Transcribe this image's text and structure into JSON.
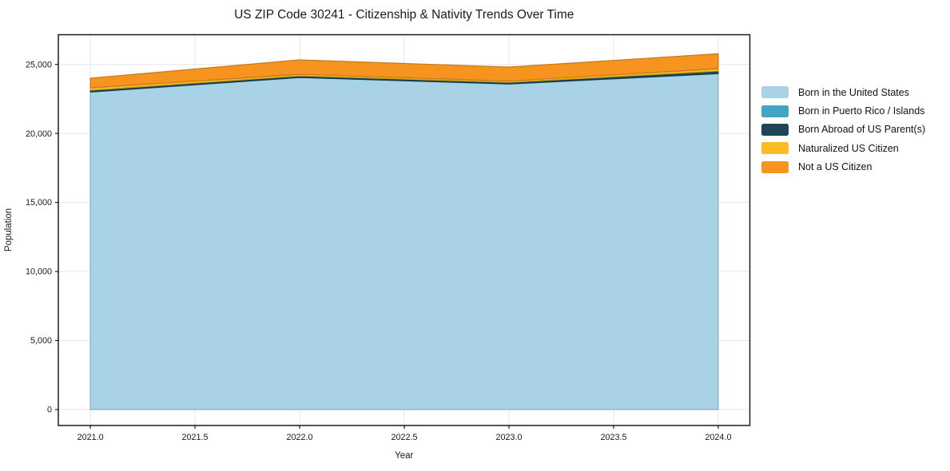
{
  "title": "US ZIP Code 30241 - Citizenship & Nativity Trends Over Time",
  "chart_data": {
    "type": "area",
    "stacked": true,
    "title": "US ZIP Code 30241 - Citizenship & Nativity Trends Over Time",
    "xlabel": "Year",
    "ylabel": "Population",
    "x": [
      2021,
      2022,
      2023,
      2024
    ],
    "series": [
      {
        "name": "Born in the United States",
        "color": "#a8d3e6",
        "values": [
          23000,
          24050,
          23580,
          24330
        ]
      },
      {
        "name": "Born in Puerto Rico / Islands",
        "color": "#41a6c6",
        "values": [
          10,
          10,
          10,
          15
        ]
      },
      {
        "name": "Born Abroad of US Parent(s)",
        "color": "#1e4456",
        "values": [
          120,
          115,
          115,
          175
        ]
      },
      {
        "name": "Naturalized US Citizen",
        "color": "#fbbc22",
        "values": [
          175,
          115,
          90,
          175
        ]
      },
      {
        "name": "Not a US Citizen",
        "color": "#f5941f",
        "values": [
          700,
          1040,
          1015,
          1080
        ]
      }
    ],
    "totals": [
      24005,
      25330,
      24810,
      25775
    ],
    "x_ticks": [
      2021.0,
      2021.5,
      2022.0,
      2022.5,
      2023.0,
      2023.5,
      2024.0
    ],
    "x_tick_labels": [
      "2021.0",
      "2021.5",
      "2022.0",
      "2022.5",
      "2023.0",
      "2023.5",
      "2024.0"
    ],
    "y_ticks": [
      0,
      5000,
      10000,
      15000,
      20000,
      25000
    ],
    "y_tick_labels": [
      "0",
      "5,000",
      "10,000",
      "15,000",
      "20,000",
      "25,000"
    ],
    "xlim": [
      2020.847,
      2024.151
    ],
    "ylim": [
      -1157,
      27153
    ],
    "grid": true,
    "legend_position": "right-outside"
  },
  "colors": {
    "background": "#ffffff",
    "gridline": "#e6e6e6",
    "spine": "#1c1c1c",
    "text": "#1a1a1a"
  }
}
